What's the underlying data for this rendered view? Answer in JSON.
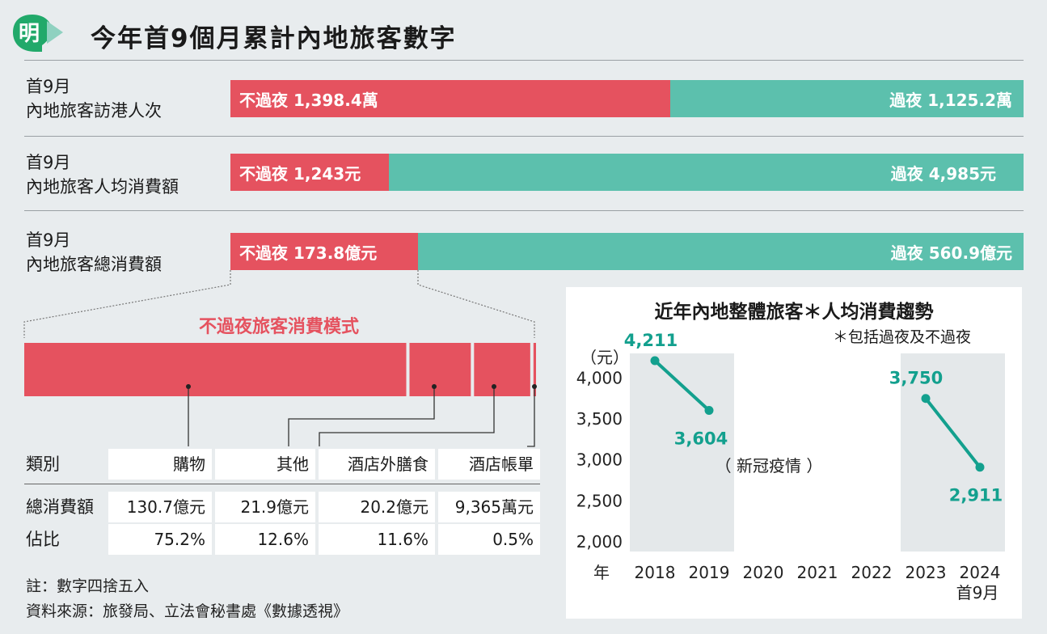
{
  "header": {
    "logo_char": "明",
    "title": "今年首9個月累計內地旅客數字"
  },
  "rows": [
    {
      "label_line1": "首9月",
      "label_line2": "內地旅客訪港人次",
      "left_text": "不過夜  1,398.4萬",
      "right_text": "過夜  1,125.2萬",
      "left_value": 1398.4,
      "right_value": 1125.2,
      "unit": "萬"
    },
    {
      "label_line1": "首9月",
      "label_line2": "內地旅客人均消費額",
      "left_text": "不過夜  1,243元",
      "right_text": "過夜  4,985元",
      "left_value": 1243,
      "right_value": 4985,
      "unit": "元"
    },
    {
      "label_line1": "首9月",
      "label_line2": "內地旅客總消費額",
      "left_text": "不過夜  173.8億元",
      "right_text": "過夜  560.9億元",
      "left_value": 173.8,
      "right_value": 560.9,
      "unit": "億元"
    }
  ],
  "colors": {
    "not_overnight": "#e5525f",
    "overnight": "#5cc0ad",
    "line": "#13a08e"
  },
  "breakdown": {
    "title": "不過夜旅客消費模式",
    "shares": [
      75.2,
      12.6,
      11.6,
      0.5
    ],
    "header_label": "類別",
    "categories": [
      "購物",
      "其他",
      "酒店外膳食",
      "酒店帳單"
    ],
    "total_label": "總消費額",
    "totals": [
      "130.7億元",
      "21.9億元",
      "20.2億元",
      "9,365萬元"
    ],
    "share_label": "佔比",
    "share_texts": [
      "75.2%",
      "12.6%",
      "11.6%",
      "0.5%"
    ]
  },
  "notes": {
    "note": "註：數字四捨五入",
    "source": "資料來源：旅發局、立法會秘書處《數據透視》"
  },
  "trend": {
    "title": "近年內地整體旅客＊人均消費趨勢",
    "footnote": "＊包括過夜及不過夜",
    "unit_label": "（元）",
    "year_label": "年",
    "covid_label": "（ 新冠疫情 ）",
    "last_sub": "首9月"
  },
  "chart_data": {
    "type": "line",
    "title": "近年內地整體旅客＊人均消費趨勢",
    "ylabel": "（元）",
    "xlabel": "年",
    "ylim": [
      2000,
      4300
    ],
    "yticks": [
      "2,000",
      "2,500",
      "3,000",
      "3,500",
      "4,000"
    ],
    "ytick_values": [
      2000,
      2500,
      3000,
      3500,
      4000
    ],
    "x": [
      "2018",
      "2019",
      "2020",
      "2021",
      "2022",
      "2023",
      "2024"
    ],
    "series": [
      {
        "points": [
          {
            "x": "2018",
            "y": 4211,
            "label": "4,211"
          },
          {
            "x": "2019",
            "y": 3604,
            "label": "3,604"
          }
        ]
      },
      {
        "points": [
          {
            "x": "2023",
            "y": 3750,
            "label": "3,750"
          },
          {
            "x": "2024",
            "y": 2911,
            "label": "2,911"
          }
        ]
      }
    ]
  }
}
